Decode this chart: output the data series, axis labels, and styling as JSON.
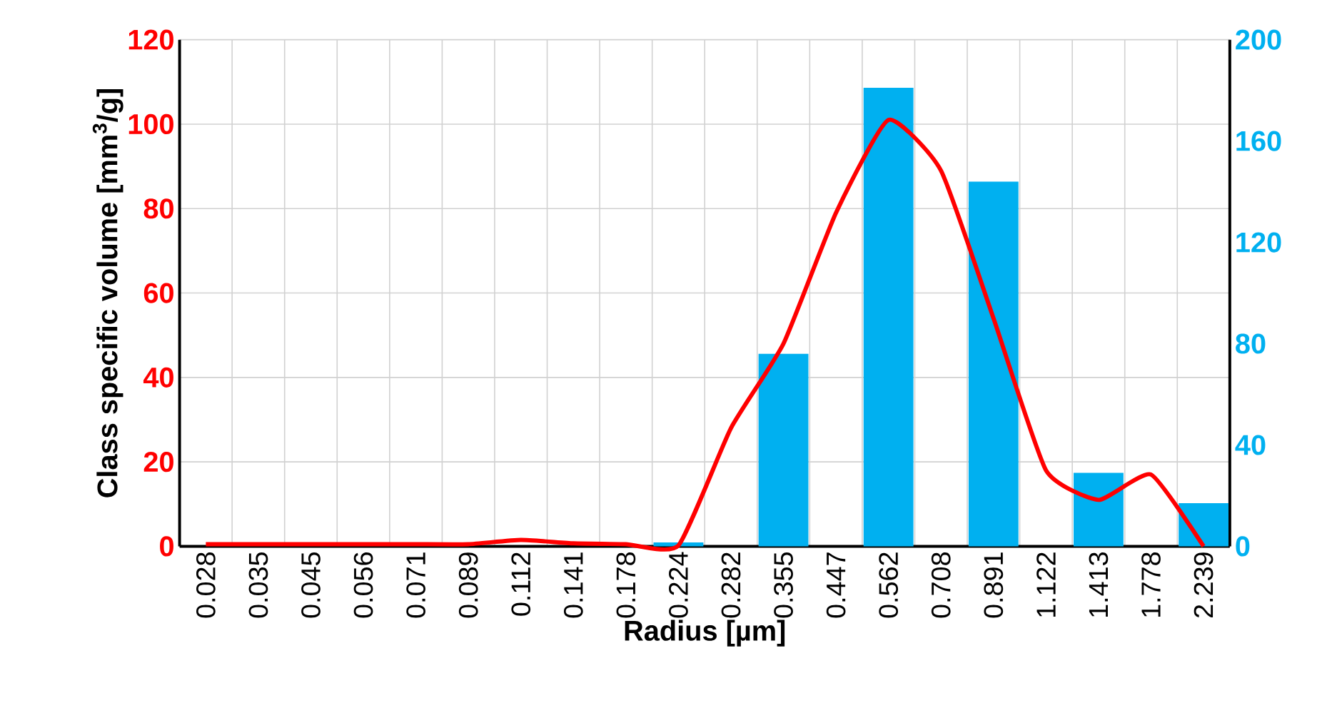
{
  "chart_data": {
    "type": "bar",
    "xlabel": "Radius [µm]",
    "ylabel": "Class specific volume [mm$^{3}$/g]",
    "categories": [
      "0.028",
      "0.035",
      "0.045",
      "0.056",
      "0.071",
      "0.089",
      "0.112",
      "0.141",
      "0.178",
      "0.224",
      "0.282",
      "0.355",
      "0.447",
      "0.562",
      "0.708",
      "0.891",
      "1.122",
      "1.413",
      "1.778",
      "2.239"
    ],
    "series": [
      {
        "axis": "y2",
        "color": "#00b0f0",
        "values": [
          0,
          0,
          0,
          0,
          0,
          0,
          0,
          0,
          0,
          1.5,
          0,
          76,
          0,
          181,
          0,
          144,
          0,
          29,
          0,
          17
        ]
      },
      {
        "type": "line",
        "color": "#ff0000",
        "values": [
          0.5,
          0.5,
          0.5,
          0.5,
          0.5,
          0.5,
          1.5,
          0.7,
          0.5,
          0.2,
          28,
          48,
          79,
          101,
          89,
          54,
          18,
          11,
          17,
          0
        ]
      }
    ],
    "ylim": [
      0,
      120
    ],
    "yticks": [
      0,
      20,
      40,
      60,
      80,
      100,
      120
    ],
    "y2lim": [
      0,
      200
    ],
    "y2ticks": [
      0,
      40,
      80,
      120,
      160,
      200
    ],
    "grid": true
  }
}
